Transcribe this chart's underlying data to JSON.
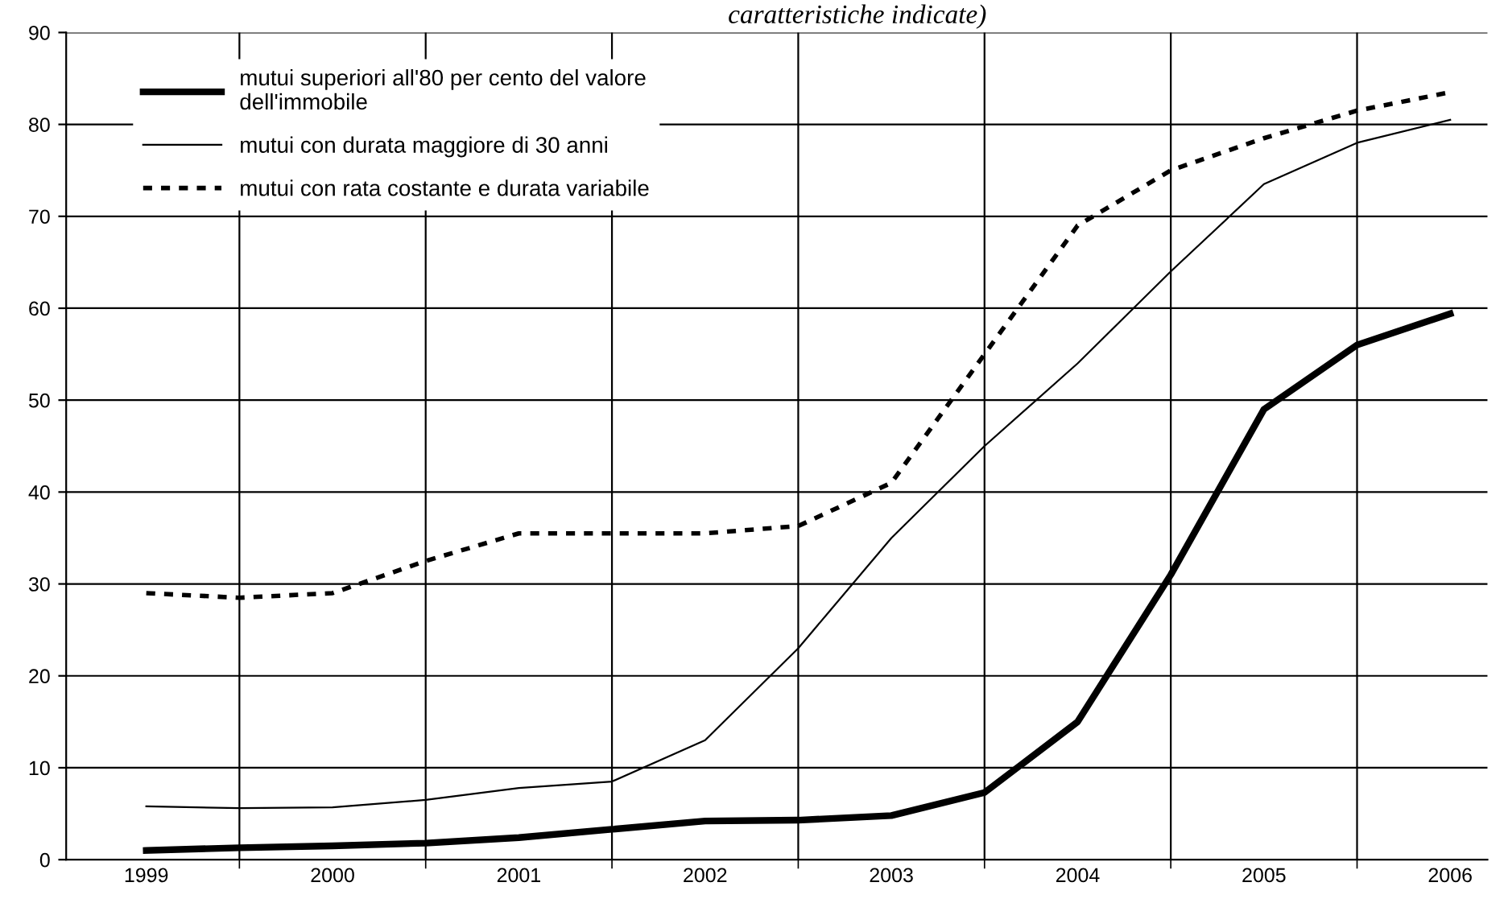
{
  "chart_data": {
    "type": "line",
    "title": "caratteristiche indicate)",
    "categories": [
      "1999",
      null,
      "2000",
      null,
      "2001",
      null,
      "2002",
      null,
      "2003",
      null,
      "2004",
      null,
      "2005",
      null,
      "2006"
    ],
    "series": [
      {
        "name": "mutui superiori all'80 per cento del valore\ndell'immobile",
        "color": "#000000",
        "line_style": "solid",
        "values": [
          1.0,
          1.3,
          1.5,
          1.8,
          2.4,
          3.3,
          4.2,
          4.3,
          4.8,
          7.3,
          15,
          31,
          49,
          56,
          59.4
        ]
      },
      {
        "name": "mutui con durata maggiore di 30 anni",
        "color": "#000000",
        "line_style": "solid",
        "values": [
          5.8,
          5.6,
          5.7,
          6.5,
          7.8,
          8.5,
          13,
          23,
          35,
          45,
          54,
          64,
          73.5,
          78,
          80.5
        ]
      },
      {
        "name": "mutui con rata costante e durata variabile",
        "color": "#000000",
        "line_style": "dashed",
        "values": [
          29,
          28.5,
          29,
          32.5,
          35.5,
          35.5,
          35.5,
          36.3,
          41,
          55,
          69,
          75,
          78.5,
          81.5,
          83.5
        ]
      }
    ],
    "ylim": [
      0,
      90
    ],
    "yticks": [
      0,
      10,
      20,
      30,
      40,
      50,
      60,
      70,
      80,
      90
    ],
    "grid": true,
    "legend": "top left",
    "marker": "none"
  }
}
